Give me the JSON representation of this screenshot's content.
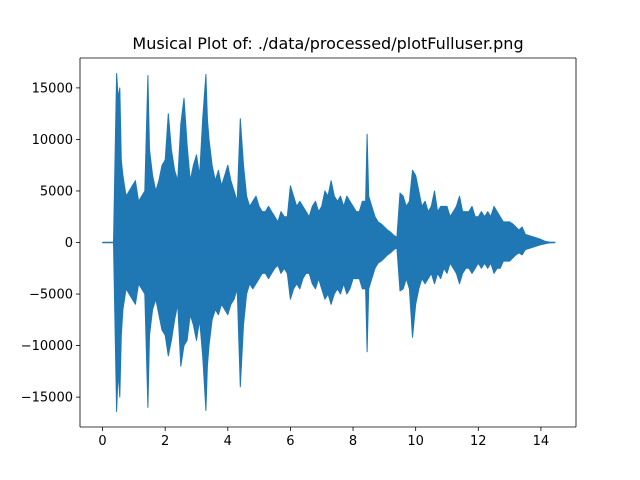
{
  "chart_data": {
    "type": "line",
    "title": "Musical Plot of: ./data/processed/plotFulluser.png",
    "xlabel": "",
    "ylabel": "",
    "xlim": [
      -0.72,
      15.12
    ],
    "ylim": [
      -17900,
      17900
    ],
    "xticks": [
      0,
      2,
      4,
      6,
      8,
      10,
      12,
      14
    ],
    "yticks": [
      -15000,
      -10000,
      -5000,
      0,
      5000,
      10000,
      15000
    ],
    "xtick_labels": [
      "0",
      "2",
      "4",
      "6",
      "8",
      "10",
      "12",
      "14"
    ],
    "ytick_labels": [
      "−15000",
      "−10000",
      "−5000",
      "0",
      "5000",
      "10000",
      "15000"
    ],
    "grid": false,
    "legend": "none",
    "color": "#1f77b4",
    "series": [
      {
        "x": [
          0.0,
          0.35,
          0.4,
          0.45,
          0.5,
          0.55,
          0.6,
          0.65,
          0.7,
          0.75,
          0.85,
          0.95,
          1.05,
          1.15,
          1.25,
          1.35,
          1.45,
          1.5,
          1.6,
          1.7,
          1.8,
          1.9,
          2.0,
          2.1,
          2.2,
          2.3,
          2.4,
          2.5,
          2.6,
          2.7,
          2.8,
          2.9,
          3.0,
          3.1,
          3.2,
          3.3,
          3.35,
          3.4,
          3.5,
          3.6,
          3.7,
          3.8,
          3.9,
          4.0,
          4.1,
          4.2,
          4.3,
          4.4,
          4.5,
          4.6,
          4.7,
          4.8,
          4.9,
          5.0,
          5.1,
          5.2,
          5.3,
          5.4,
          5.5,
          5.6,
          5.7,
          5.8,
          5.9,
          6.0,
          6.1,
          6.2,
          6.3,
          6.4,
          6.5,
          6.6,
          6.7,
          6.8,
          6.9,
          7.0,
          7.1,
          7.2,
          7.3,
          7.4,
          7.5,
          7.6,
          7.7,
          7.8,
          7.9,
          8.0,
          8.1,
          8.2,
          8.3,
          8.4,
          8.45,
          8.5,
          8.6,
          8.7,
          8.8,
          8.9,
          9.0,
          9.1,
          9.2,
          9.3,
          9.4,
          9.5,
          9.6,
          9.7,
          9.8,
          9.9,
          10.0,
          10.1,
          10.2,
          10.3,
          10.4,
          10.5,
          10.6,
          10.7,
          10.8,
          10.9,
          11.0,
          11.1,
          11.2,
          11.3,
          11.4,
          11.5,
          11.6,
          11.7,
          11.8,
          11.9,
          12.0,
          12.1,
          12.2,
          12.3,
          12.4,
          12.5,
          12.6,
          12.7,
          12.8,
          12.9,
          13.0,
          13.1,
          13.2,
          13.3,
          13.4,
          13.5,
          13.6,
          13.7,
          13.8,
          13.9,
          14.0,
          14.1,
          14.2,
          14.3,
          14.45
        ],
        "y_max": [
          0,
          0,
          8500,
          16400,
          14000,
          15000,
          8000,
          6500,
          5500,
          4500,
          5000,
          5500,
          6000,
          4000,
          4500,
          5000,
          16200,
          9000,
          6500,
          5000,
          6000,
          7500,
          8000,
          12500,
          9000,
          7000,
          6000,
          11500,
          14000,
          9500,
          6000,
          7500,
          8500,
          6500,
          12000,
          16300,
          12000,
          10000,
          7500,
          6000,
          7000,
          5500,
          6500,
          7500,
          6000,
          5000,
          4000,
          12000,
          7500,
          4500,
          3500,
          4000,
          4500,
          3500,
          3000,
          3000,
          3500,
          3000,
          2500,
          2000,
          3000,
          2500,
          2500,
          5500,
          4500,
          3500,
          4000,
          3500,
          3000,
          2500,
          3500,
          4000,
          3000,
          3500,
          5000,
          4500,
          6000,
          4500,
          4000,
          4500,
          3500,
          4500,
          4000,
          3500,
          3000,
          3000,
          4000,
          4000,
          10500,
          4500,
          3500,
          2500,
          2000,
          1800,
          1500,
          1200,
          1000,
          700,
          500,
          4800,
          4500,
          3500,
          4000,
          7000,
          6500,
          5000,
          3500,
          4000,
          3000,
          3500,
          5000,
          3000,
          3500,
          3500,
          3500,
          2500,
          3000,
          3500,
          4500,
          3000,
          3000,
          3000,
          3500,
          2500,
          2500,
          3000,
          2500,
          3000,
          2500,
          3500,
          3000,
          2500,
          2000,
          2000,
          2000,
          1800,
          1500,
          1200,
          1500,
          800,
          700,
          600,
          500,
          400,
          300,
          150,
          80,
          30,
          0
        ],
        "y_min": [
          0,
          0,
          -8500,
          -16400,
          -12500,
          -15000,
          -9000,
          -6500,
          -5500,
          -4500,
          -5000,
          -5500,
          -6000,
          -4000,
          -4500,
          -5000,
          -16000,
          -9000,
          -6500,
          -5500,
          -7000,
          -8500,
          -9000,
          -11000,
          -9500,
          -7500,
          -6000,
          -12000,
          -10000,
          -9500,
          -7000,
          -8000,
          -9500,
          -7500,
          -11000,
          -16300,
          -12000,
          -10000,
          -7500,
          -6500,
          -7000,
          -6000,
          -6500,
          -7000,
          -6000,
          -5500,
          -4500,
          -14000,
          -8000,
          -5000,
          -4000,
          -4500,
          -4000,
          -3500,
          -3000,
          -3000,
          -3500,
          -3000,
          -2500,
          -2200,
          -3000,
          -2500,
          -3000,
          -5500,
          -4500,
          -4000,
          -4500,
          -3500,
          -3000,
          -3000,
          -4000,
          -4500,
          -3500,
          -4500,
          -5500,
          -5000,
          -6000,
          -5000,
          -4500,
          -5000,
          -4000,
          -5000,
          -4500,
          -3500,
          -3500,
          -3500,
          -4500,
          -4500,
          -10600,
          -4500,
          -3500,
          -2500,
          -2000,
          -1800,
          -1500,
          -1200,
          -1000,
          -700,
          -500,
          -4700,
          -4500,
          -3500,
          -4500,
          -9200,
          -6000,
          -4500,
          -3500,
          -4000,
          -3500,
          -3000,
          -4000,
          -3000,
          -3500,
          -2500,
          -3000,
          -2000,
          -2500,
          -3000,
          -4000,
          -3000,
          -2500,
          -2500,
          -3000,
          -2500,
          -2000,
          -2500,
          -2000,
          -2500,
          -2000,
          -3000,
          -2500,
          -2500,
          -1800,
          -1800,
          -1800,
          -1500,
          -1200,
          -1000,
          -1200,
          -700,
          -600,
          -500,
          -400,
          -300,
          -200,
          -150,
          -80,
          -30,
          0
        ]
      }
    ]
  }
}
